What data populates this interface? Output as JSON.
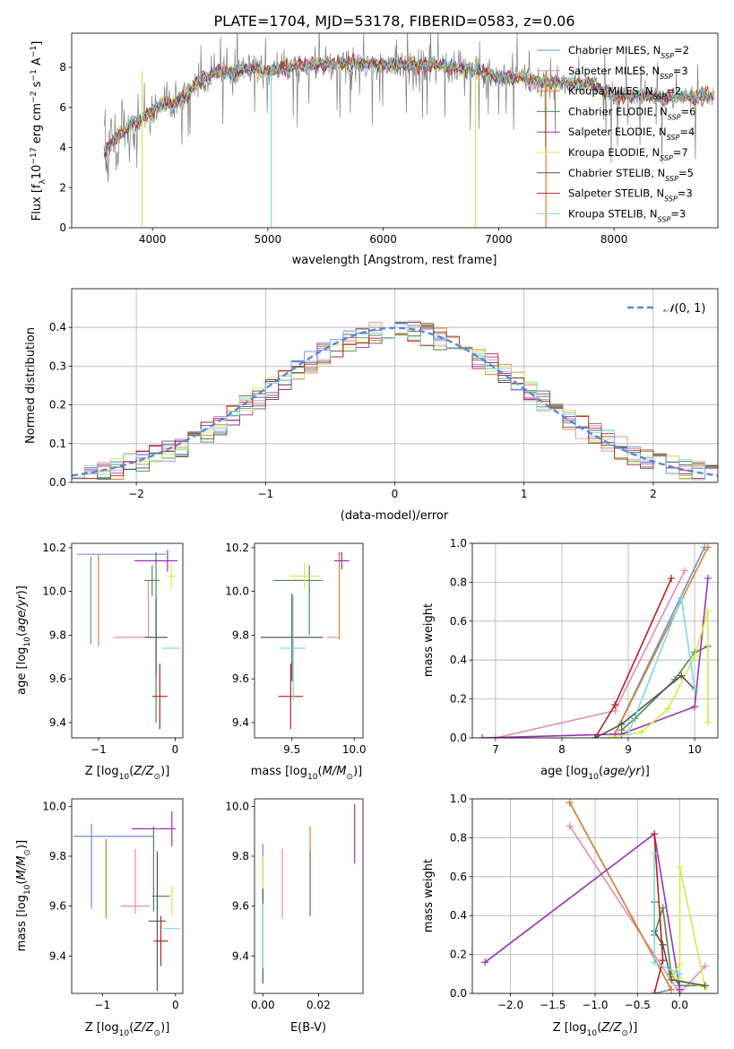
{
  "title": "PLATE=1704, MJD=53178, FIBERID=0583, z=0.06",
  "colors": [
    "#6a8fd6",
    "#e08cb4",
    "#d9822b",
    "#4d8a4d",
    "#9932b0",
    "#d7e84a",
    "#555555",
    "#b22222",
    "#7fd8e0"
  ],
  "legend": [
    "Chabrier MILES, N_SSP=2",
    "Salpeter MILES, N_SSP=3",
    "Kroupa MILES, N_SSP=2",
    "Chabrier ELODIE, N_SSP=6",
    "Salpeter ELODIE, N_SSP=4",
    "Kroupa ELODIE, N_SSP=7",
    "Chabrier STELIB, N_SSP=5",
    "Salpeter STELIB, N_SSP=3",
    "Kroupa STELIB, N_SSP=3"
  ],
  "chart_data": [
    {
      "type": "line",
      "id": "spectrum",
      "xlabel": "wavelength [Angstrom, rest frame]",
      "ylabel": "Flux [f_λ 10^-17 erg cm^-2 s^-1 A^-1]",
      "xlim": [
        3300,
        8900
      ],
      "ylim": [
        0,
        9.7
      ],
      "xticks": [
        4000,
        5000,
        6000,
        7000,
        8000
      ],
      "yticks": [
        0,
        2,
        4,
        6,
        8
      ],
      "data_series": {
        "name": "data",
        "color": "#808080"
      },
      "profile": {
        "x": [
          3580,
          3700,
          3800,
          3900,
          4000,
          4100,
          4200,
          4300,
          4400,
          4500,
          4600,
          4700,
          4800,
          4900,
          5000,
          5200,
          5400,
          5600,
          5800,
          6000,
          6200,
          6400,
          6600,
          6800,
          7000,
          7200,
          7400,
          7600,
          7800,
          8000,
          8200,
          8400,
          8600,
          8800
        ],
        "y": [
          3.8,
          4.5,
          5.1,
          5.3,
          5.9,
          6.2,
          6.2,
          6.6,
          7.3,
          7.6,
          7.8,
          7.8,
          7.9,
          7.9,
          7.8,
          8.0,
          8.1,
          8.2,
          8.2,
          8.1,
          8.1,
          8.1,
          8.0,
          7.8,
          7.5,
          7.5,
          7.2,
          7.2,
          7.2,
          6.5,
          6.6,
          6.5,
          6.5,
          6.5
        ]
      },
      "legend_position": "right"
    },
    {
      "type": "line",
      "id": "residual_distribution",
      "xlabel": "(data-model)/error",
      "ylabel": "Normed distribution",
      "xlim": [
        -2.5,
        2.5
      ],
      "ylim": [
        0,
        0.5
      ],
      "xticks": [
        -2,
        -1,
        0,
        1,
        2
      ],
      "yticks": [
        0.0,
        0.1,
        0.2,
        0.3,
        0.4
      ],
      "grid": true,
      "reference": {
        "name": "N(0,1)",
        "mean": 0,
        "sigma": 1,
        "style": "dashed",
        "color": "#5b86d6"
      },
      "histogram_bins": 50,
      "legend_position": "top-right"
    },
    {
      "type": "scatter",
      "id": "age_vs_Z",
      "xlabel": "Z [log10(Z/Z_sun)]",
      "ylabel": "age [log10(age/yr)]",
      "xlim": [
        -1.35,
        0.1
      ],
      "ylim": [
        9.33,
        10.22
      ],
      "xticks": [
        -1,
        0
      ],
      "yticks": [
        9.4,
        9.6,
        9.8,
        10.0,
        10.2
      ],
      "points": [
        {
          "x": -1.1,
          "y": 9.96,
          "xerr": 0.0,
          "yerr": 0.2,
          "s": 0
        },
        {
          "x": -0.7,
          "y": 10.17,
          "xerr": 0.58,
          "yerr": 0.0,
          "s": 0
        },
        {
          "x": -1.0,
          "y": 9.96,
          "xerr": 0.0,
          "yerr": 0.21,
          "s": 2
        },
        {
          "x": -0.55,
          "y": 9.79,
          "xerr": 0.25,
          "yerr": 0.0,
          "s": 1
        },
        {
          "x": -0.35,
          "y": 9.92,
          "xerr": 0.0,
          "yerr": 0.13,
          "s": 1
        },
        {
          "x": -0.3,
          "y": 10.05,
          "xerr": 0.1,
          "yerr": 0.07,
          "s": 3
        },
        {
          "x": -0.25,
          "y": 9.79,
          "xerr": 0.0,
          "yerr": 0.39,
          "s": 3
        },
        {
          "x": -0.25,
          "y": 10.14,
          "xerr": 0.28,
          "yerr": 0.0,
          "s": 4
        },
        {
          "x": -0.1,
          "y": 10.14,
          "xerr": 0.0,
          "yerr": 0.05,
          "s": 4
        },
        {
          "x": -0.05,
          "y": 10.07,
          "xerr": 0.06,
          "yerr": 0.06,
          "s": 5
        },
        {
          "x": -0.25,
          "y": 9.79,
          "xerr": 0.15,
          "yerr": 0.18,
          "s": 6
        },
        {
          "x": -0.2,
          "y": 9.52,
          "xerr": 0.1,
          "yerr": 0.15,
          "s": 7
        },
        {
          "x": -0.05,
          "y": 9.74,
          "xerr": 0.12,
          "yerr": 0.0,
          "s": 8
        }
      ]
    },
    {
      "type": "scatter",
      "id": "age_vs_mass",
      "xlabel": "mass [log10(M/M_sun)]",
      "ylabel": "",
      "xlim": [
        9.2,
        10.07
      ],
      "ylim": [
        9.33,
        10.22
      ],
      "xticks": [
        9.5,
        10.0
      ],
      "yticks": [
        9.4,
        9.6,
        9.8,
        10.0,
        10.2
      ],
      "points": [
        {
          "x": 9.88,
          "y": 10.17,
          "xerr": 0.0,
          "yerr": 0.0,
          "s": 0
        },
        {
          "x": 9.83,
          "y": 9.79,
          "xerr": 0.05,
          "yerr": 0.0,
          "s": 1
        },
        {
          "x": 9.88,
          "y": 9.98,
          "xerr": 0.0,
          "yerr": 0.2,
          "s": 2
        },
        {
          "x": 9.55,
          "y": 10.05,
          "xerr": 0.2,
          "yerr": 0.0,
          "s": 3
        },
        {
          "x": 9.64,
          "y": 9.96,
          "xerr": 0.0,
          "yerr": 0.16,
          "s": 3
        },
        {
          "x": 9.9,
          "y": 10.14,
          "xerr": 0.06,
          "yerr": 0.04,
          "s": 4
        },
        {
          "x": 9.6,
          "y": 10.07,
          "xerr": 0.12,
          "yerr": 0.06,
          "s": 5
        },
        {
          "x": 9.5,
          "y": 9.79,
          "xerr": 0.25,
          "yerr": 0.2,
          "s": 6
        },
        {
          "x": 9.49,
          "y": 9.52,
          "xerr": 0.1,
          "yerr": 0.15,
          "s": 7
        },
        {
          "x": 9.51,
          "y": 9.74,
          "xerr": 0.1,
          "yerr": 0.24,
          "s": 8
        }
      ]
    },
    {
      "type": "line",
      "id": "mass_weight_vs_age",
      "xlabel": "age [log10(age/yr)]",
      "ylabel": "mass weight",
      "xlim": [
        6.65,
        10.35
      ],
      "ylim": [
        0,
        1
      ],
      "xticks": [
        7,
        8,
        9,
        10
      ],
      "yticks": [
        0.0,
        0.2,
        0.4,
        0.6,
        0.8,
        1.0
      ],
      "grid": true,
      "series": [
        {
          "s": 0,
          "x": [
            8.8,
            10.15
          ],
          "y": [
            0.02,
            0.98
          ]
        },
        {
          "s": 1,
          "x": [
            7.0,
            8.8,
            9.85
          ],
          "y": [
            0.0,
            0.14,
            0.86
          ]
        },
        {
          "s": 2,
          "x": [
            8.8,
            10.2
          ],
          "y": [
            0.02,
            0.98
          ]
        },
        {
          "s": 3,
          "x": [
            8.9,
            9.1,
            9.7,
            10.0,
            10.2
          ],
          "y": [
            0.04,
            0.1,
            0.3,
            0.44,
            0.47
          ]
        },
        {
          "s": 4,
          "x": [
            6.8,
            8.9,
            10.0,
            10.2
          ],
          "y": [
            0.0,
            0.02,
            0.16,
            0.82
          ]
        },
        {
          "s": 5,
          "x": [
            8.7,
            9.2,
            9.6,
            10.0,
            10.2,
            10.2
          ],
          "y": [
            0.0,
            0.03,
            0.15,
            0.42,
            0.65,
            0.08
          ]
        },
        {
          "s": 6,
          "x": [
            8.5,
            8.9,
            9.8,
            10.0
          ],
          "y": [
            0.0,
            0.07,
            0.32,
            0.25
          ]
        },
        {
          "s": 7,
          "x": [
            8.5,
            8.8,
            9.65
          ],
          "y": [
            0.0,
            0.17,
            0.82
          ]
        },
        {
          "s": 8,
          "x": [
            9.0,
            9.8,
            10.0
          ],
          "y": [
            0.02,
            0.72,
            0.25
          ]
        }
      ]
    },
    {
      "type": "scatter",
      "id": "mass_vs_Z",
      "xlabel": "Z [log10(Z/Z_sun)]",
      "ylabel": "mass [log10(M/M_sun)]",
      "xlim": [
        -1.42,
        0.1
      ],
      "ylim": [
        9.25,
        10.03
      ],
      "xticks": [
        -1,
        0
      ],
      "yticks": [
        9.4,
        9.6,
        9.8,
        10.0
      ],
      "points": [
        {
          "x": -0.85,
          "y": 9.88,
          "xerr": 0.55,
          "yerr": 0.0,
          "s": 0
        },
        {
          "x": -1.15,
          "y": 9.76,
          "xerr": 0.0,
          "yerr": 0.17,
          "s": 0
        },
        {
          "x": -0.55,
          "y": 9.6,
          "xerr": 0.2,
          "yerr": 0.0,
          "s": 1
        },
        {
          "x": -0.55,
          "y": 9.7,
          "xerr": 0.0,
          "yerr": 0.13,
          "s": 1
        },
        {
          "x": -0.95,
          "y": 9.71,
          "xerr": 0.0,
          "yerr": 0.16,
          "s": 2
        },
        {
          "x": -0.2,
          "y": 9.64,
          "xerr": 0.12,
          "yerr": 0.0,
          "s": 3
        },
        {
          "x": -0.3,
          "y": 9.75,
          "xerr": 0.0,
          "yerr": 0.17,
          "s": 3
        },
        {
          "x": -0.3,
          "y": 9.91,
          "xerr": 0.3,
          "yerr": 0.0,
          "s": 4
        },
        {
          "x": -0.05,
          "y": 9.91,
          "xerr": 0.0,
          "yerr": 0.07,
          "s": 4
        },
        {
          "x": -0.05,
          "y": 9.62,
          "xerr": 0.0,
          "yerr": 0.06,
          "s": 5
        },
        {
          "x": -0.25,
          "y": 9.54,
          "xerr": 0.12,
          "yerr": 0.28,
          "s": 6
        },
        {
          "x": -0.2,
          "y": 9.46,
          "xerr": 0.1,
          "yerr": 0.1,
          "s": 7
        },
        {
          "x": -0.05,
          "y": 9.51,
          "xerr": 0.12,
          "yerr": 0.0,
          "s": 8
        }
      ]
    },
    {
      "type": "scatter",
      "id": "mass_vs_EBV",
      "xlabel": "E(B-V)",
      "ylabel": "",
      "xlim": [
        -0.003,
        0.036
      ],
      "ylim": [
        9.25,
        10.03
      ],
      "xticks": [
        0.0,
        0.02
      ],
      "yticks": [
        9.4,
        9.6,
        9.8,
        10.0
      ],
      "points": [
        {
          "x": 0.0,
          "y": 9.74,
          "yerr": 0.11,
          "s": 0
        },
        {
          "x": 0.007,
          "y": 9.69,
          "yerr": 0.14,
          "s": 1
        },
        {
          "x": 0.017,
          "y": 9.74,
          "yerr": 0.18,
          "s": 2
        },
        {
          "x": 0.017,
          "y": 9.69,
          "yerr": 0.13,
          "s": 3
        },
        {
          "x": 0.033,
          "y": 9.89,
          "yerr": 0.12,
          "s": 4
        },
        {
          "x": 0.0,
          "y": 9.68,
          "yerr": 0.12,
          "s": 5
        },
        {
          "x": 0.0,
          "y": 9.48,
          "yerr": 0.19,
          "s": 6
        },
        {
          "x": 0.0,
          "y": 9.48,
          "yerr": 0.13,
          "s": 8
        }
      ]
    },
    {
      "type": "line",
      "id": "mass_weight_vs_Z",
      "xlabel": "Z [log10(Z/Z_sun)]",
      "ylabel": "mass weight",
      "xlim": [
        -2.45,
        0.45
      ],
      "ylim": [
        0,
        1
      ],
      "xticks": [
        -2.0,
        -1.5,
        -1.0,
        -0.5,
        0.0
      ],
      "yticks": [
        0.0,
        0.2,
        0.4,
        0.6,
        0.8,
        1.0
      ],
      "grid": true,
      "series": [
        {
          "s": 0,
          "x": [
            -1.3,
            -0.1,
            -0.3
          ],
          "y": [
            0.98,
            0.02,
            0.0
          ]
        },
        {
          "s": 1,
          "x": [
            -1.3,
            0.0,
            0.3
          ],
          "y": [
            0.86,
            0.0,
            0.14
          ]
        },
        {
          "s": 2,
          "x": [
            -1.3,
            -0.1
          ],
          "y": [
            0.98,
            0.02
          ]
        },
        {
          "s": 3,
          "x": [
            -0.3,
            -0.3,
            -0.2,
            -0.1,
            0.0,
            0.3
          ],
          "y": [
            0.47,
            0.3,
            0.44,
            0.1,
            0.04,
            0.04
          ]
        },
        {
          "s": 4,
          "x": [
            -2.3,
            -0.3,
            0.0
          ],
          "y": [
            0.16,
            0.82,
            0.02
          ]
        },
        {
          "s": 5,
          "x": [
            0.0,
            0.0,
            0.3,
            -0.1,
            0.0
          ],
          "y": [
            0.08,
            0.65,
            0.03,
            0.08,
            0.15
          ]
        },
        {
          "s": 6,
          "x": [
            -0.3,
            -0.2,
            -0.1,
            0.3
          ],
          "y": [
            0.32,
            0.25,
            0.07,
            0.04
          ]
        },
        {
          "s": 7,
          "x": [
            -0.3,
            -0.2,
            -0.3
          ],
          "y": [
            0.82,
            0.17,
            0.0
          ]
        },
        {
          "s": 8,
          "x": [
            -0.3,
            -0.3,
            0.0
          ],
          "y": [
            0.72,
            0.16,
            0.1
          ]
        }
      ]
    }
  ]
}
